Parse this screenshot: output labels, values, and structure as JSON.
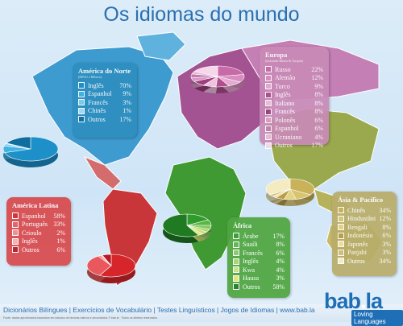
{
  "title": "Os idiomas do mundo",
  "footer": {
    "links": "Dicionários Bilíngues | Exercícios de Vocabulário | Testes Linguísticos | Jogos de Idiomas | www.bab.la",
    "small_print": "Fonte: dados aproximados baseados em estudos de idiomas nativos e secundários © bab.la · Todos os direitos reservados"
  },
  "logo": {
    "text": "bab",
    "dot": ".",
    "suffix": "la",
    "tagline": "Loving Languages"
  },
  "chart_data": [
    {
      "type": "pie",
      "title": "América do Norte",
      "subtitle": "(EEUU e México)",
      "slices": [
        {
          "label": "Inglês",
          "value": 70,
          "display": "70%"
        },
        {
          "label": "Espanhol",
          "value": 9,
          "display": "9%"
        },
        {
          "label": "Francês",
          "value": 3,
          "display": "3%"
        },
        {
          "label": "Chinês",
          "value": 1,
          "display": "1%"
        },
        {
          "label": "Outros",
          "value": 17,
          "display": "17%"
        }
      ],
      "colors": [
        "#1d8fc9",
        "#41b3e3",
        "#7bcfee",
        "#a6def5",
        "#0f6e9e"
      ],
      "panel_color": "#2f8fbf",
      "legend": "top-right of map region"
    },
    {
      "type": "pie",
      "title": "Europa",
      "subtitle": "(incluindo Rússia & Turquia)",
      "slices": [
        {
          "label": "Russo",
          "value": 22,
          "display": "22%"
        },
        {
          "label": "Alemão",
          "value": 12,
          "display": "12%"
        },
        {
          "label": "Turco",
          "value": 9,
          "display": "9%"
        },
        {
          "label": "Inglês",
          "value": 8,
          "display": "8%"
        },
        {
          "label": "Italiano",
          "value": 8,
          "display": "8%"
        },
        {
          "label": "Francês",
          "value": 8,
          "display": "8%"
        },
        {
          "label": "Polonês",
          "value": 6,
          "display": "6%"
        },
        {
          "label": "Espanhol",
          "value": 6,
          "display": "6%"
        },
        {
          "label": "Ucraniano",
          "value": 4,
          "display": "4%"
        },
        {
          "label": "Outros",
          "value": 17,
          "display": "17%"
        }
      ],
      "colors": [
        "#c96aa8",
        "#d98cbf",
        "#e6a9d1",
        "#b04f8e",
        "#f0c2e0",
        "#9c3f7c",
        "#dd97c6",
        "#c27db0",
        "#e8b6d6",
        "#f6d6ea"
      ],
      "panel_color": "#c98ab8"
    },
    {
      "type": "pie",
      "title": "América Latina",
      "slices": [
        {
          "label": "Espanhol",
          "value": 58,
          "display": "58%"
        },
        {
          "label": "Português",
          "value": 33,
          "display": "33%"
        },
        {
          "label": "Crioulo",
          "value": 2,
          "display": "2%"
        },
        {
          "label": "Inglês",
          "value": 1,
          "display": "1%"
        },
        {
          "label": "Outros",
          "value": 6,
          "display": "6%"
        }
      ],
      "colors": [
        "#d6262b",
        "#e8585c",
        "#f08a8d",
        "#f5b0b2",
        "#b81a20"
      ],
      "panel_color": "#d84a4e"
    },
    {
      "type": "pie",
      "title": "África",
      "slices": [
        {
          "label": "Árabe",
          "value": 17,
          "display": "17%"
        },
        {
          "label": "Suaíli",
          "value": 8,
          "display": "8%"
        },
        {
          "label": "Francês",
          "value": 6,
          "display": "6%"
        },
        {
          "label": "Inglês",
          "value": 4,
          "display": "4%"
        },
        {
          "label": "Kwa",
          "value": 4,
          "display": "4%"
        },
        {
          "label": "Hausa",
          "value": 3,
          "display": "3%"
        },
        {
          "label": "Outros",
          "value": 58,
          "display": "58%"
        }
      ],
      "colors": [
        "#2f9b2b",
        "#58b546",
        "#86c95e",
        "#a8d46b",
        "#c9e07a",
        "#e2e86a",
        "#1f7a22"
      ],
      "panel_color": "#4fa640"
    },
    {
      "type": "pie",
      "title": "Ásia & Pacífico",
      "slices": [
        {
          "label": "Chinês",
          "value": 34,
          "display": "34%"
        },
        {
          "label": "Hindustâni",
          "value": 12,
          "display": "12%"
        },
        {
          "label": "Bengali",
          "value": 8,
          "display": "8%"
        },
        {
          "label": "Indonésio",
          "value": 6,
          "display": "6%"
        },
        {
          "label": "Japonês",
          "value": 3,
          "display": "3%"
        },
        {
          "label": "Panjabi",
          "value": 3,
          "display": "3%"
        },
        {
          "label": "Outros",
          "value": 34,
          "display": "34%"
        }
      ],
      "colors": [
        "#c9b25a",
        "#d8c46e",
        "#e3d385",
        "#b99e45",
        "#eee0a0",
        "#d2be7c",
        "#f4ebc0"
      ],
      "panel_color": "#b9ad6a"
    }
  ]
}
